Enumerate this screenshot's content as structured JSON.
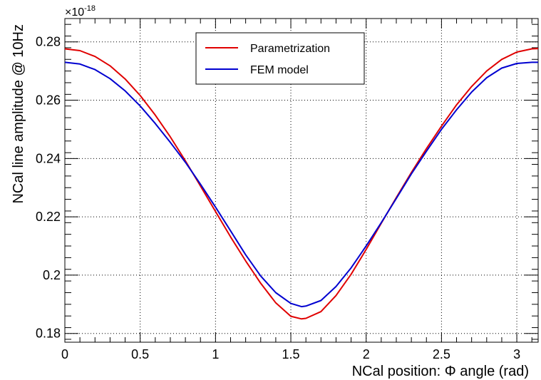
{
  "chart_data": {
    "type": "line",
    "title": "",
    "xlabel": "NCal position: Φ angle (rad)",
    "ylabel": "NCal line amplitude @ 10Hz",
    "y_exponent_label": "×10",
    "y_exponent_power": "-18",
    "xlim": [
      0,
      3.1416
    ],
    "ylim": [
      0.177,
      0.288
    ],
    "grid": true,
    "legend_position": "top-center",
    "x_ticks": [
      {
        "value": 0,
        "label": "0"
      },
      {
        "value": 0.5,
        "label": "0.5"
      },
      {
        "value": 1,
        "label": "1"
      },
      {
        "value": 1.5,
        "label": "1.5"
      },
      {
        "value": 2,
        "label": "2"
      },
      {
        "value": 2.5,
        "label": "2.5"
      },
      {
        "value": 3,
        "label": "3"
      }
    ],
    "y_ticks": [
      {
        "value": 0.18,
        "label": "0.18"
      },
      {
        "value": 0.2,
        "label": "0.2"
      },
      {
        "value": 0.22,
        "label": "0.22"
      },
      {
        "value": 0.24,
        "label": "0.24"
      },
      {
        "value": 0.26,
        "label": "0.26"
      },
      {
        "value": 0.28,
        "label": "0.28"
      }
    ],
    "series": [
      {
        "name": "Parametrization",
        "color": "#e00000",
        "x": [
          0,
          0.1,
          0.2,
          0.3,
          0.4,
          0.5,
          0.6,
          0.7,
          0.8,
          0.9,
          1.0,
          1.1,
          1.2,
          1.3,
          1.4,
          1.5,
          1.5708,
          1.6,
          1.7,
          1.8,
          1.9,
          2.0,
          2.1,
          2.2,
          2.3,
          2.4,
          2.5,
          2.6,
          2.7,
          2.8,
          2.9,
          3.0,
          3.1,
          3.1416
        ],
        "y": [
          0.2776,
          0.277,
          0.275,
          0.2718,
          0.2673,
          0.2616,
          0.2549,
          0.2474,
          0.2392,
          0.2306,
          0.2218,
          0.2131,
          0.2049,
          0.1972,
          0.1905,
          0.1859,
          0.185,
          0.1852,
          0.1875,
          0.193,
          0.2003,
          0.2088,
          0.2178,
          0.2266,
          0.2352,
          0.2434,
          0.2511,
          0.2584,
          0.2647,
          0.27,
          0.274,
          0.2765,
          0.2776,
          0.2777
        ]
      },
      {
        "name": "FEM model",
        "color": "#0000d0",
        "x": [
          0,
          0.1,
          0.2,
          0.3,
          0.4,
          0.5,
          0.6,
          0.7,
          0.8,
          0.9,
          1.0,
          1.1,
          1.2,
          1.3,
          1.4,
          1.5,
          1.5708,
          1.6,
          1.7,
          1.8,
          1.9,
          2.0,
          2.1,
          2.2,
          2.3,
          2.4,
          2.5,
          2.6,
          2.7,
          2.8,
          2.9,
          3.0,
          3.1,
          3.1416
        ],
        "y": [
          0.273,
          0.2724,
          0.2705,
          0.2674,
          0.2632,
          0.258,
          0.252,
          0.2455,
          0.2387,
          0.2312,
          0.2233,
          0.2152,
          0.207,
          0.1997,
          0.194,
          0.1903,
          0.1892,
          0.1894,
          0.1913,
          0.1961,
          0.2025,
          0.21,
          0.218,
          0.2263,
          0.2347,
          0.2425,
          0.25,
          0.2567,
          0.2628,
          0.2677,
          0.271,
          0.2726,
          0.273,
          0.273
        ]
      }
    ]
  }
}
